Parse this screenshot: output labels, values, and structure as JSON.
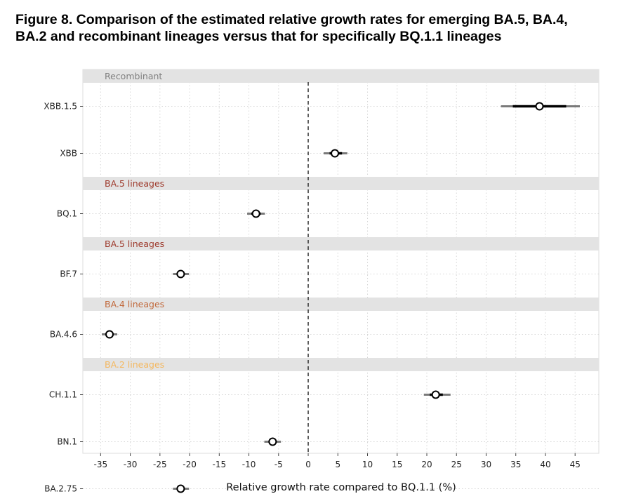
{
  "figure": {
    "title_line1": "Figure 8. Comparison of the estimated relative growth rates for emerging BA.5, BA.4,",
    "title_line2": "BA.2 and recombinant lineages versus that for specifically BQ.1.1 lineages"
  },
  "chart_data": {
    "type": "forest",
    "title": "Figure 8. Comparison of the estimated relative growth rates for emerging BA.5, BA.4, BA.2 and recombinant lineages versus that for specifically BQ.1.1 lineages",
    "xlabel": "Relative growth rate compared to BQ.1.1 (%)",
    "xlim": [
      -38,
      49
    ],
    "xticks": [
      -35,
      -30,
      -25,
      -20,
      -15,
      -10,
      -5,
      0,
      5,
      10,
      15,
      20,
      25,
      30,
      35,
      40,
      45
    ],
    "reference_line": 0,
    "grid": true,
    "groups": [
      {
        "name": "Recombinant",
        "color": "#808080",
        "lineages": [
          {
            "name": "XBB.1.5",
            "estimate": 39,
            "inner": [
              34.5,
              43.5
            ],
            "outer": [
              32.5,
              45.8
            ]
          },
          {
            "name": "XBB",
            "estimate": 4.5,
            "inner": [
              3.6,
              5.7
            ],
            "outer": [
              2.6,
              6.6
            ]
          }
        ]
      },
      {
        "name": "BA.5 lineages",
        "color": "#9e3a2c",
        "lineages": [
          {
            "name": "BQ.1",
            "estimate": -8.8,
            "inner": [
              -9.6,
              -8.0
            ],
            "outer": [
              -10.3,
              -7.3
            ]
          }
        ]
      },
      {
        "name": "BA.5 lineages",
        "color": "#9e3a2c",
        "lineages": [
          {
            "name": "BF.7",
            "estimate": -21.5,
            "inner": [
              -22.2,
              -20.8
            ],
            "outer": [
              -22.8,
              -20.1
            ]
          }
        ]
      },
      {
        "name": "BA.4 lineages",
        "color": "#c26a3d",
        "lineages": [
          {
            "name": "BA.4.6",
            "estimate": -33.5,
            "inner": [
              -34.2,
              -32.8
            ],
            "outer": [
              -34.8,
              -32.2
            ]
          }
        ]
      },
      {
        "name": "BA.2 lineages",
        "color": "#f4b860",
        "lineages": [
          {
            "name": "CH.1.1",
            "estimate": 21.5,
            "inner": [
              20.5,
              22.7
            ],
            "outer": [
              19.5,
              24.0
            ]
          },
          {
            "name": "BN.1",
            "estimate": -6.0,
            "inner": [
              -6.7,
              -5.3
            ],
            "outer": [
              -7.4,
              -4.6
            ]
          },
          {
            "name": "BA.2.75",
            "estimate": -21.5,
            "inner": [
              -22.2,
              -20.8
            ],
            "outer": [
              -22.8,
              -20.1
            ]
          }
        ]
      }
    ]
  }
}
